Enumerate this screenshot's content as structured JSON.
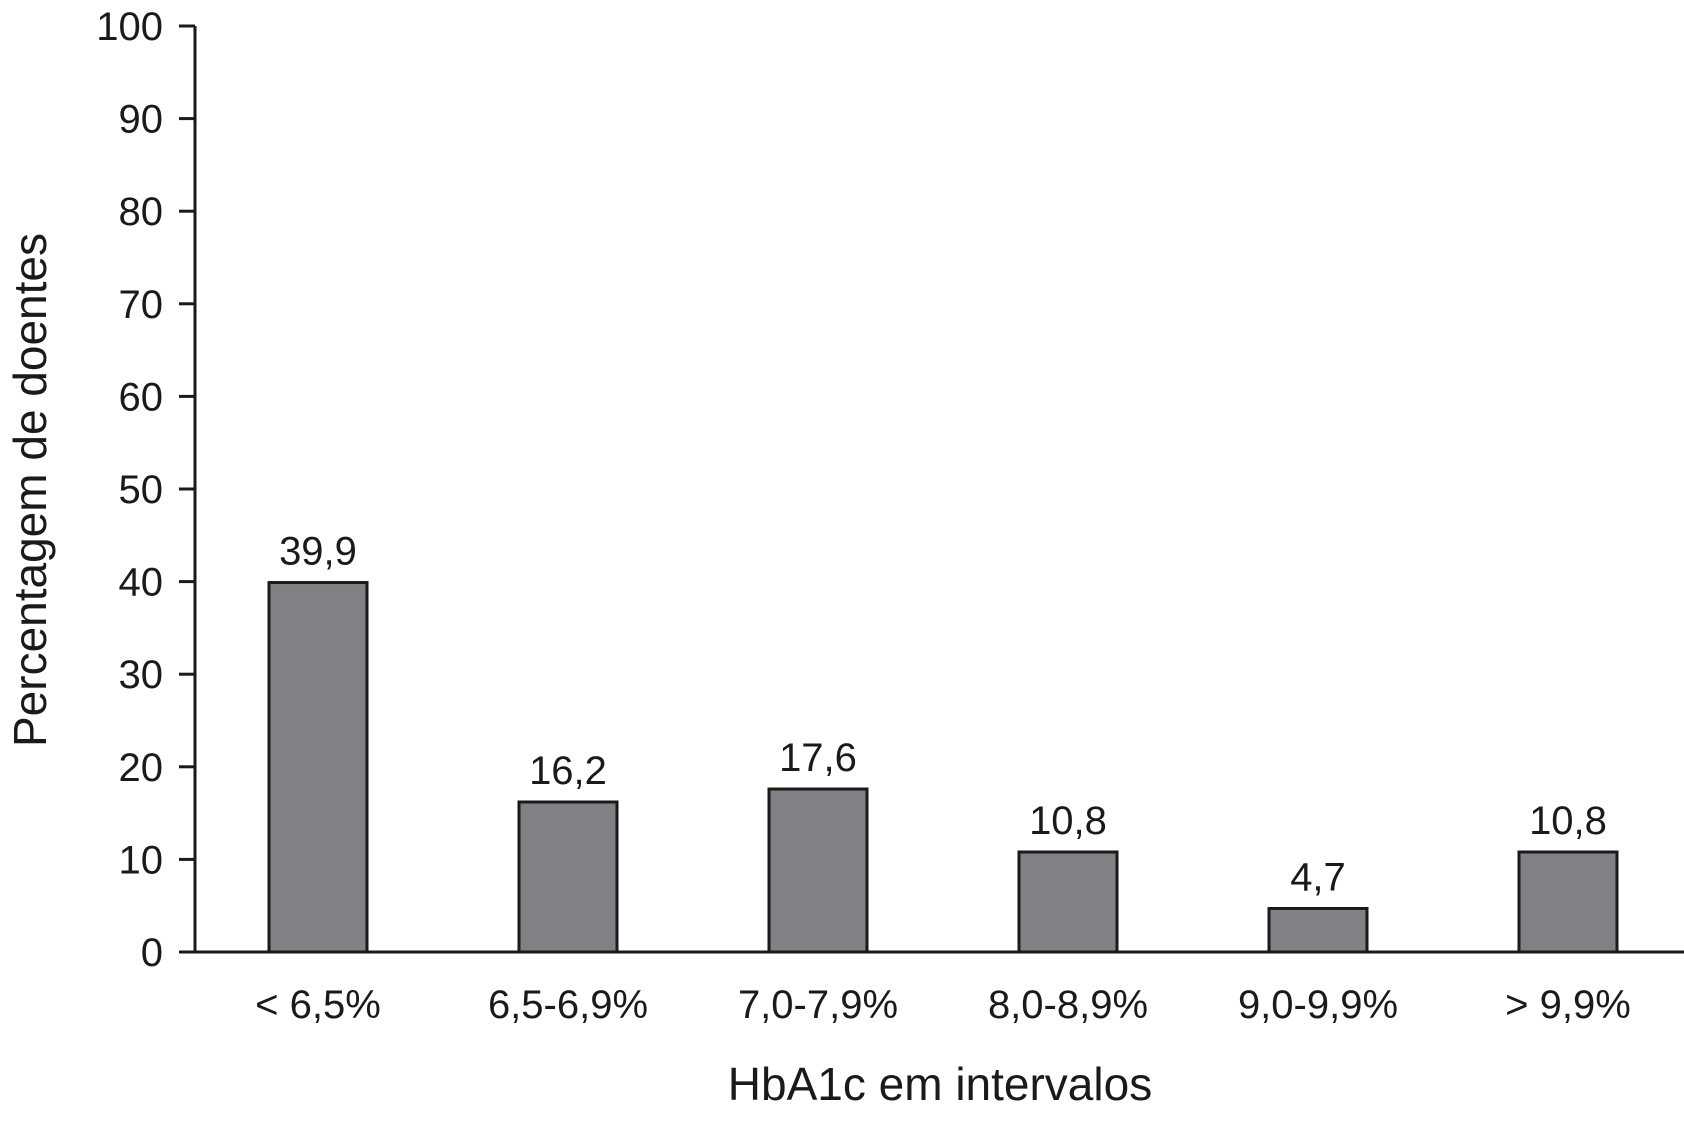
{
  "chart_data": {
    "type": "bar",
    "title": "",
    "xlabel": "HbA1c em intervalos",
    "ylabel": "Percentagem de doentes",
    "categories": [
      "< 6,5%",
      "6,5-6,9%",
      "7,0-7,9%",
      "8,0-8,9%",
      "9,0-9,9%",
      "> 9,9%"
    ],
    "values": [
      39.9,
      16.2,
      17.6,
      10.8,
      4.7,
      10.8
    ],
    "value_labels": [
      "39,9",
      "16,2",
      "17,6",
      "10,8",
      "4,7",
      "10,8"
    ],
    "ylim": [
      0,
      100
    ],
    "yticks": [
      0,
      10,
      20,
      30,
      40,
      50,
      60,
      70,
      80,
      90,
      100
    ],
    "grid": false,
    "legend": "none",
    "bar_color": "#808184"
  }
}
